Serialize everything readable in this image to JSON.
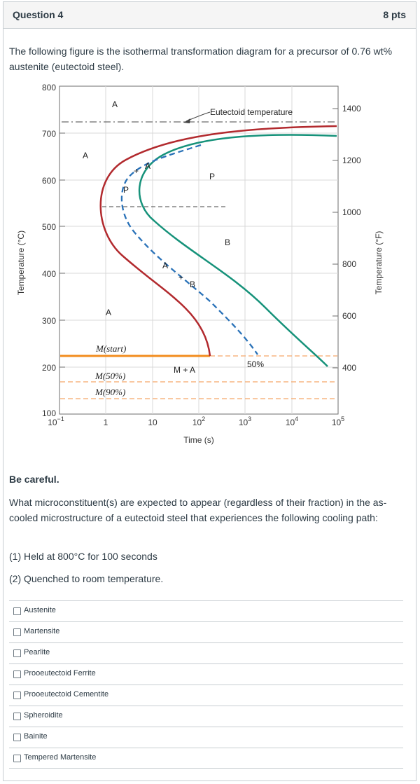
{
  "question": {
    "title": "Question 4",
    "points": "8 pts",
    "intro": "The following figure is the isothermal transformation diagram for a precursor of 0.76 wt% austenite (eutectoid steel).",
    "careful": "Be careful.",
    "prompt": "What microconstituent(s) are expected to appear (regardless of their fraction) in the as-cooled microstructure of a eutectoid steel that experiences the following cooling path:",
    "steps": [
      "(1) Held at 800°C for 100 seconds",
      "(2) Quenched to room temperature."
    ]
  },
  "diagram": {
    "ylabel_left": "Temperature (°C)",
    "ylabel_right": "Temperature (°F)",
    "xlabel": "Time (s)",
    "yticks_c": [
      "800",
      "700",
      "600",
      "500",
      "400",
      "300",
      "200",
      "100"
    ],
    "yticks_f": [
      "1400",
      "1200",
      "1000",
      "800",
      "600",
      "400"
    ],
    "xticks": [
      "1",
      "10"
    ],
    "xticks_sup": [
      {
        "base": "10",
        "exp": "−1"
      },
      {
        "base": "10",
        "exp": "2"
      },
      {
        "base": "10",
        "exp": "3"
      },
      {
        "base": "10",
        "exp": "4"
      },
      {
        "base": "10",
        "exp": "5"
      }
    ],
    "labels": {
      "eutectoid": "Eutectoid temperature",
      "a_top": "A",
      "a_left": "A",
      "a_low": "A",
      "a_curve": "A",
      "a_curve2": "A",
      "p_curve": "P",
      "p_right": "P",
      "b_mid": "B",
      "b_curve": "B",
      "ms": "M(start)",
      "m50": "M(50%)",
      "m90": "M(90%)",
      "m_plus_a": "M + A",
      "fifty": "50%",
      "plus1": "+",
      "plus2": "+"
    },
    "colors": {
      "start": "#b22a2e",
      "finish": "#16927a",
      "fifty": "#2a72b8",
      "mstart": "#f28c1e",
      "mdash": "#f5a869"
    }
  },
  "answers": [
    "Austenite",
    "Martensite",
    "Pearlite",
    "Prooeutectoid Ferrite",
    "Prooeutectoid Cementite",
    "Spheroidite",
    "Bainite",
    "Tempered Martensite"
  ]
}
